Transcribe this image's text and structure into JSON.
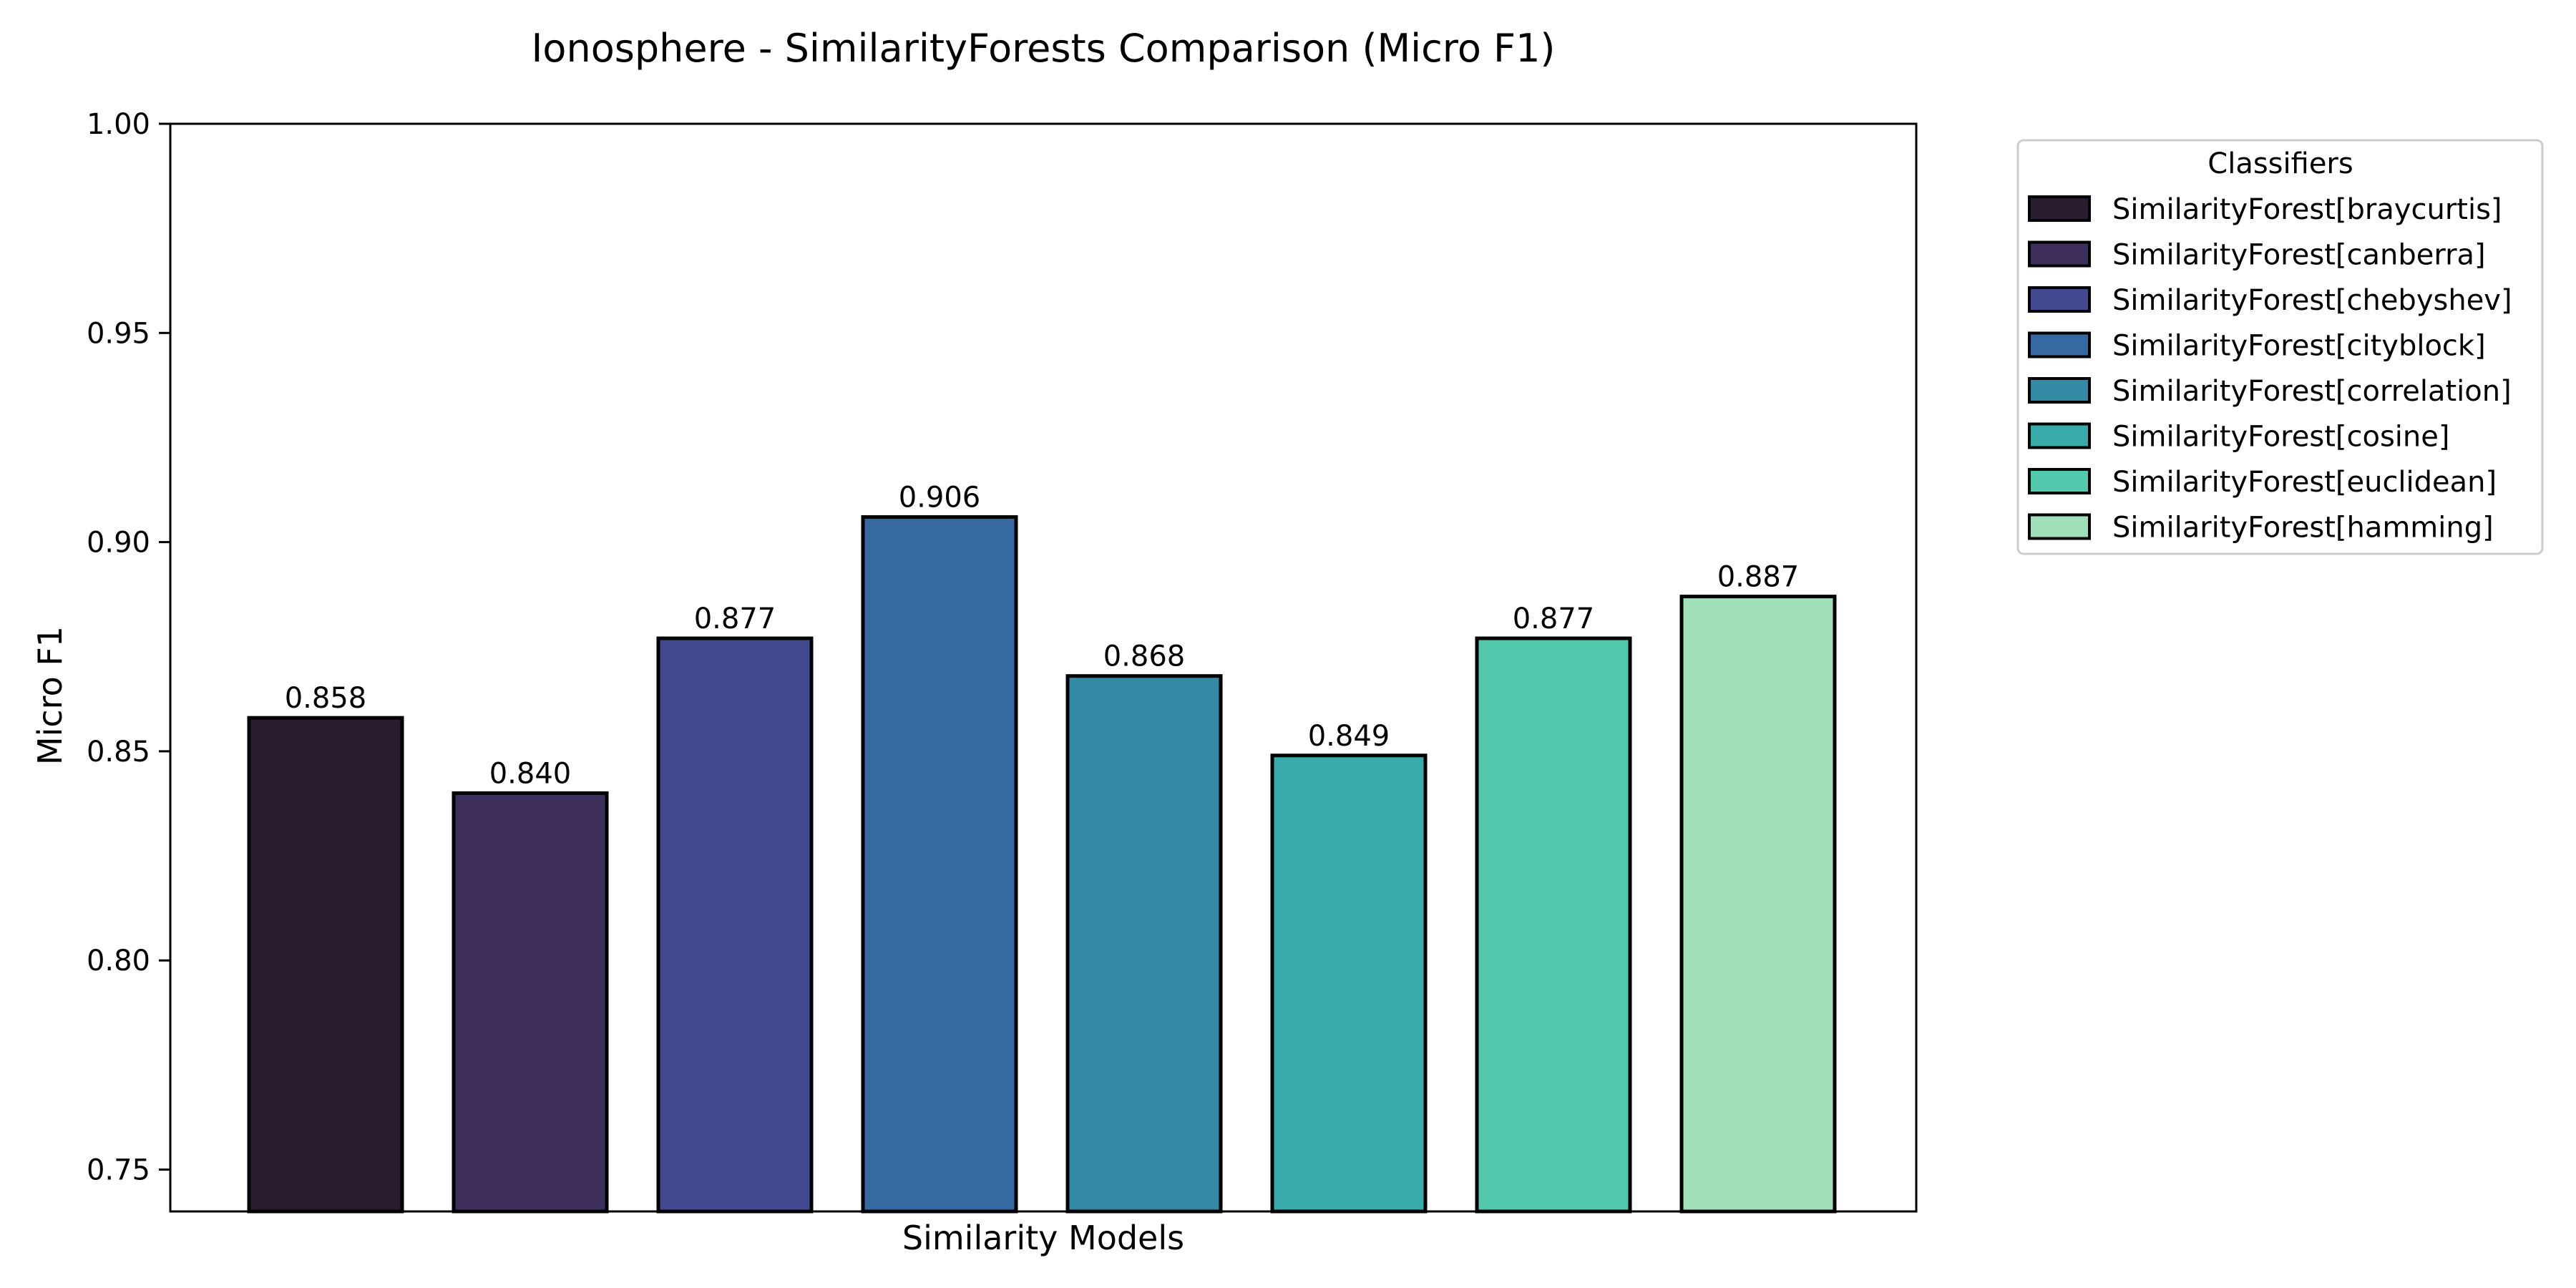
{
  "chart_data": {
    "type": "bar",
    "title": "Ionosphere - SimilarityForests Comparison (Micro F1)",
    "xlabel": "Similarity Models",
    "ylabel": "Micro F1",
    "ylim": [
      0.74,
      1.0
    ],
    "yticks": [
      0.75,
      0.8,
      0.85,
      0.9,
      0.95,
      1.0
    ],
    "ytick_labels": [
      "0.75",
      "0.80",
      "0.85",
      "0.90",
      "0.95",
      "1.00"
    ],
    "grid": false,
    "categories": [
      "SimilarityForest[braycurtis]",
      "SimilarityForest[canberra]",
      "SimilarityForest[chebyshev]",
      "SimilarityForest[cityblock]",
      "SimilarityForest[correlation]",
      "SimilarityForest[cosine]",
      "SimilarityForest[euclidean]",
      "SimilarityForest[hamming]"
    ],
    "values": [
      0.858,
      0.84,
      0.877,
      0.906,
      0.868,
      0.849,
      0.877,
      0.887
    ],
    "value_labels": [
      "0.858",
      "0.840",
      "0.877",
      "0.906",
      "0.868",
      "0.849",
      "0.877",
      "0.887"
    ],
    "colors": [
      "#2a1c30",
      "#3d2e5b",
      "#43498e",
      "#3769a1",
      "#338aa5",
      "#38aaaa",
      "#52c9ac",
      "#a1dfb8"
    ],
    "legend": {
      "title": "Classifiers",
      "placement": "outside-right-top"
    }
  }
}
